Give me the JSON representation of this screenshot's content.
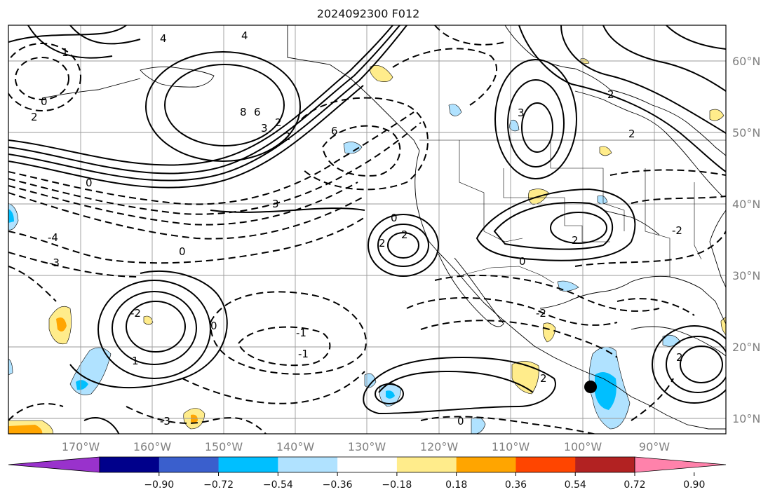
{
  "title": "2024092300 F012",
  "map": {
    "lon_labels": [
      "170°W",
      "160°W",
      "150°W",
      "140°W",
      "130°W",
      "120°W",
      "110°W",
      "100°W",
      "90°W"
    ],
    "lat_labels": [
      "60°N",
      "50°N",
      "40°N",
      "30°N",
      "20°N",
      "10°N"
    ],
    "contour_labels": [
      "4",
      "4",
      "1",
      "0",
      "2",
      "8",
      "6",
      "2",
      "3",
      "6",
      "2",
      "0",
      "3",
      "-4",
      "-3",
      "0",
      "2",
      "2",
      "0",
      "-2",
      "0",
      "-1",
      "1",
      "-1",
      "-2",
      "2",
      "3",
      "2",
      "2",
      "-2",
      "2",
      "2",
      "0",
      "-3",
      "0"
    ]
  },
  "colorbar": {
    "colors": [
      "#9932cc",
      "#00008b",
      "#3a5fcd",
      "#00bfff",
      "#b0e2ff",
      "#ffffff",
      "#ffec8b",
      "#ffa500",
      "#ff4500",
      "#b22222",
      "#ff82ab"
    ],
    "ticks": [
      "−0.90",
      "−0.72",
      "−0.54",
      "−0.36",
      "−0.18",
      "0.18",
      "0.36",
      "0.54",
      "0.72",
      "0.90"
    ]
  }
}
